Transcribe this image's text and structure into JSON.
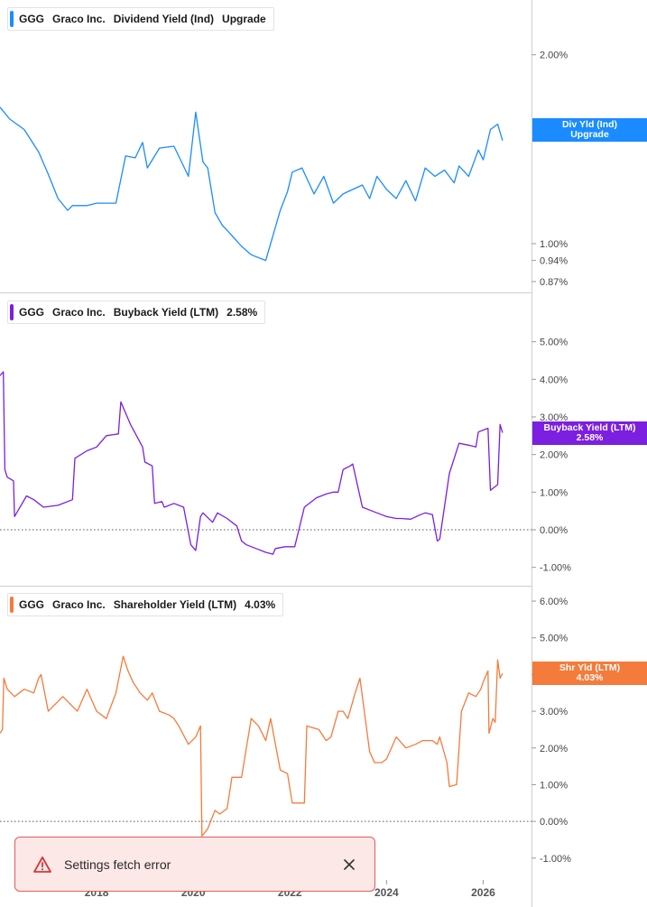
{
  "chart_data": [
    {
      "type": "line",
      "legend": {
        "ticker": "GGG",
        "company": "Graco Inc.",
        "metric": "Dividend Yield (Ind)",
        "value": "Upgrade"
      },
      "color": "#1a8cff",
      "scale": "log",
      "ylim": [
        0.87,
        2.35
      ],
      "ticks": [
        "2.00%",
        "1.00%",
        "0.94%",
        "0.87%"
      ],
      "tick_values": [
        2.0,
        1.0,
        0.94,
        0.87
      ],
      "label": {
        "line1": "Div Yld (Ind)",
        "line2": "Upgrade"
      },
      "label_value": 1.52,
      "series": [
        {
          "x": [
            2016.0,
            2016.2,
            2016.5,
            2016.8,
            2017.0,
            2017.2,
            2017.4,
            2017.5,
            2017.8,
            2018.0,
            2018.2,
            2018.4,
            2018.6,
            2018.8,
            2018.95,
            2019.05,
            2019.3,
            2019.6,
            2019.9,
            2020.05,
            2020.2,
            2020.3,
            2020.45,
            2020.6,
            2020.8,
            2021.0,
            2021.2,
            2021.5,
            2021.8,
            2021.95,
            2022.05,
            2022.25,
            2022.5,
            2022.7,
            2022.9,
            2023.1,
            2023.3,
            2023.5,
            2023.65,
            2023.8,
            2024.0,
            2024.2,
            2024.4,
            2024.6,
            2024.8,
            2025.0,
            2025.2,
            2025.4,
            2025.5,
            2025.7,
            2025.9,
            2026.0,
            2026.15,
            2026.3,
            2026.4
          ],
          "y": [
            1.65,
            1.58,
            1.52,
            1.4,
            1.29,
            1.18,
            1.13,
            1.15,
            1.15,
            1.16,
            1.16,
            1.16,
            1.38,
            1.37,
            1.45,
            1.32,
            1.42,
            1.43,
            1.28,
            1.62,
            1.35,
            1.32,
            1.12,
            1.07,
            1.03,
            0.99,
            0.96,
            0.94,
            1.13,
            1.21,
            1.3,
            1.32,
            1.2,
            1.28,
            1.16,
            1.2,
            1.22,
            1.24,
            1.18,
            1.28,
            1.22,
            1.18,
            1.26,
            1.17,
            1.32,
            1.28,
            1.31,
            1.25,
            1.33,
            1.28,
            1.41,
            1.36,
            1.52,
            1.55,
            1.46
          ]
        }
      ]
    },
    {
      "type": "line",
      "legend": {
        "ticker": "GGG",
        "company": "Graco Inc.",
        "metric": "Buyback Yield (LTM)",
        "value": "2.58%"
      },
      "color": "#7b1fe0",
      "ylim": [
        -1.2,
        6.0
      ],
      "ticks": [
        "5.00%",
        "4.00%",
        "3.00%",
        "2.00%",
        "1.00%",
        "0.00%",
        "-1.00%"
      ],
      "tick_values": [
        5,
        4,
        3,
        2,
        1,
        0,
        -1
      ],
      "label": {
        "line1": "Buyback Yield (LTM)",
        "line2": "2.58%"
      },
      "label_value": 2.58,
      "series": [
        {
          "x": [
            2016.0,
            2016.07,
            2016.1,
            2016.15,
            2016.28,
            2016.3,
            2016.55,
            2016.7,
            2016.9,
            2017.2,
            2017.5,
            2017.55,
            2017.8,
            2018.0,
            2018.2,
            2018.45,
            2018.5,
            2018.7,
            2018.95,
            2019.0,
            2019.15,
            2019.2,
            2019.35,
            2019.4,
            2019.6,
            2019.8,
            2019.95,
            2020.05,
            2020.15,
            2020.2,
            2020.4,
            2020.5,
            2020.7,
            2020.9,
            2021.0,
            2021.1,
            2021.3,
            2021.5,
            2021.65,
            2021.7,
            2021.9,
            2022.1,
            2022.3,
            2022.35,
            2022.55,
            2022.75,
            2022.9,
            2023.0,
            2023.1,
            2023.25,
            2023.3,
            2023.5,
            2023.7,
            2023.9,
            2024.0,
            2024.2,
            2024.3,
            2024.5,
            2024.7,
            2024.8,
            2024.95,
            2025.05,
            2025.1,
            2025.3,
            2025.5,
            2025.7,
            2025.85,
            2025.9,
            2026.1,
            2026.15,
            2026.25,
            2026.3,
            2026.35,
            2026.4
          ],
          "y": [
            4.1,
            4.2,
            1.6,
            1.4,
            1.3,
            0.35,
            0.9,
            0.8,
            0.6,
            0.65,
            0.8,
            1.9,
            2.1,
            2.2,
            2.5,
            2.55,
            3.4,
            2.8,
            2.2,
            1.8,
            1.7,
            0.7,
            0.75,
            0.6,
            0.7,
            0.6,
            -0.4,
            -0.55,
            0.35,
            0.45,
            0.2,
            0.45,
            0.3,
            0.1,
            -0.3,
            -0.4,
            -0.5,
            -0.6,
            -0.65,
            -0.5,
            -0.45,
            -0.45,
            0.6,
            0.65,
            0.85,
            0.95,
            1.0,
            1.0,
            1.6,
            1.7,
            1.75,
            0.6,
            0.5,
            0.4,
            0.35,
            0.3,
            0.3,
            0.28,
            0.4,
            0.45,
            0.4,
            -0.3,
            -0.25,
            1.5,
            2.3,
            2.25,
            2.2,
            2.6,
            2.7,
            1.05,
            1.15,
            1.2,
            2.8,
            2.58
          ]
        }
      ]
    },
    {
      "type": "line",
      "legend": {
        "ticker": "GGG",
        "company": "Graco Inc.",
        "metric": "Shareholder Yield (LTM)",
        "value": "4.03%"
      },
      "color": "#f47b3b",
      "ylim": [
        -1.3,
        6.1
      ],
      "ticks": [
        "6.00%",
        "5.00%",
        "4.00%",
        "3.00%",
        "2.00%",
        "1.00%",
        "0.00%",
        "-1.00%"
      ],
      "tick_values": [
        6,
        5,
        4,
        3,
        2,
        1,
        0,
        -1
      ],
      "label": {
        "line1": "Shr Yld (LTM)",
        "line2": "4.03%"
      },
      "label_value": 4.03,
      "series": [
        {
          "x": [
            2016.0,
            2016.05,
            2016.08,
            2016.15,
            2016.3,
            2016.5,
            2016.7,
            2016.8,
            2016.85,
            2017.0,
            2017.3,
            2017.6,
            2017.8,
            2018.0,
            2018.2,
            2018.4,
            2018.55,
            2018.65,
            2018.75,
            2018.9,
            2019.05,
            2019.15,
            2019.3,
            2019.5,
            2019.6,
            2019.7,
            2019.9,
            2020.05,
            2020.15,
            2020.18,
            2020.3,
            2020.45,
            2020.55,
            2020.7,
            2020.8,
            2020.95,
            2021.0,
            2021.2,
            2021.35,
            2021.5,
            2021.6,
            2021.8,
            2021.95,
            2022.05,
            2022.3,
            2022.35,
            2022.6,
            2022.75,
            2022.85,
            2023.0,
            2023.1,
            2023.2,
            2023.35,
            2023.45,
            2023.65,
            2023.75,
            2023.9,
            2024.0,
            2024.2,
            2024.4,
            2024.6,
            2024.75,
            2024.95,
            2025.05,
            2025.1,
            2025.25,
            2025.3,
            2025.45,
            2025.55,
            2025.7,
            2025.85,
            2025.95,
            2026.0,
            2026.1,
            2026.12,
            2026.2,
            2026.25,
            2026.3,
            2026.35,
            2026.4
          ],
          "y": [
            2.4,
            2.5,
            3.9,
            3.6,
            3.4,
            3.6,
            3.5,
            3.9,
            4.0,
            3.0,
            3.4,
            3.0,
            3.6,
            3.0,
            2.8,
            3.5,
            4.5,
            4.1,
            3.8,
            3.5,
            3.3,
            3.5,
            3.0,
            2.9,
            2.8,
            2.6,
            2.1,
            2.3,
            2.6,
            -0.4,
            -0.2,
            0.3,
            0.2,
            0.35,
            1.2,
            1.2,
            1.2,
            2.8,
            2.6,
            2.2,
            2.8,
            1.4,
            1.3,
            0.5,
            0.5,
            2.6,
            2.5,
            2.2,
            2.3,
            3.0,
            3.0,
            2.8,
            3.5,
            3.9,
            1.9,
            1.6,
            1.6,
            1.7,
            2.3,
            2.0,
            2.1,
            2.2,
            2.2,
            2.1,
            2.3,
            1.6,
            0.95,
            1.0,
            3.0,
            3.5,
            3.4,
            3.6,
            3.8,
            4.1,
            2.4,
            2.8,
            2.7,
            4.4,
            3.9,
            4.03
          ]
        }
      ]
    }
  ],
  "x_axis": {
    "xlim": [
      2016.0,
      2027.0
    ],
    "ticks": [
      {
        "label": "2018",
        "value": 2018
      },
      {
        "label": "2020",
        "value": 2020
      },
      {
        "label": "2022",
        "value": 2022
      },
      {
        "label": "2024",
        "value": 2024
      },
      {
        "label": "2026",
        "value": 2026
      }
    ]
  },
  "toast": {
    "message": "Settings fetch error",
    "icon": "warning-triangle-icon",
    "close_icon": "close-icon"
  }
}
